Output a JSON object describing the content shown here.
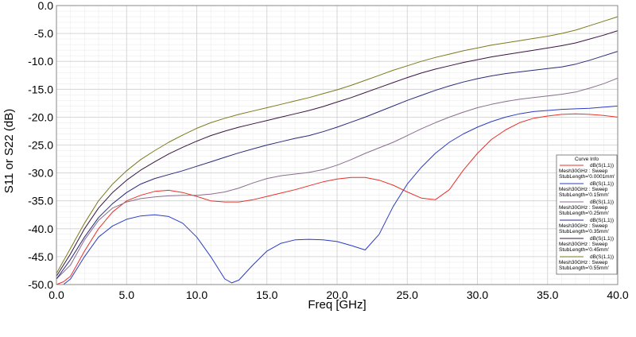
{
  "chart_data": {
    "type": "line",
    "title": "",
    "xlabel": "Freq [GHz]",
    "ylabel": "S11 or S22 (dB)",
    "xlim": [
      0,
      40
    ],
    "ylim": [
      -50,
      0
    ],
    "x_ticks": [
      "0.0",
      "5.0",
      "10.0",
      "15.0",
      "20.0",
      "25.0",
      "30.0",
      "35.0",
      "40.0"
    ],
    "y_ticks": [
      "0.0",
      "-5.0",
      "-10.0",
      "-15.0",
      "-20.0",
      "-25.0",
      "-30.0",
      "-35.0",
      "-40.0",
      "-45.0",
      "-50.0"
    ],
    "grid": true,
    "legend": {
      "title": "Curve Info",
      "placement": "bottom-right"
    },
    "series": [
      {
        "name": "dB(S(1,1))",
        "line1": "Mesh30GHz : Sweep",
        "line2": "StubLength='0.0001mm'",
        "color": "#e8312a",
        "x": [
          0,
          0.5,
          1,
          2,
          3,
          4,
          5,
          6,
          7,
          8,
          9,
          10,
          11,
          12,
          13,
          14,
          15,
          16,
          17,
          18,
          19,
          20,
          21,
          22,
          23,
          24,
          25,
          26,
          27,
          28,
          29,
          30,
          31,
          32,
          33,
          34,
          35,
          36,
          37,
          38,
          39,
          40
        ],
        "y": [
          -50,
          -49.5,
          -48.5,
          -44,
          -40,
          -37,
          -35,
          -34,
          -33.3,
          -33.1,
          -33.5,
          -34.2,
          -35,
          -35.2,
          -35.2,
          -34.8,
          -34.2,
          -33.6,
          -33,
          -32.3,
          -31.6,
          -31.1,
          -30.8,
          -30.8,
          -31.3,
          -32.2,
          -33.4,
          -34.5,
          -34.8,
          -33,
          -29.5,
          -26.5,
          -24,
          -22.3,
          -21,
          -20.2,
          -19.8,
          -19.5,
          -19.4,
          -19.5,
          -19.7,
          -20
        ]
      },
      {
        "name": "dB(S(1,1))",
        "line1": "Mesh30GHz : Sweep",
        "line2": "StubLength='0.15mm'",
        "color": "#2b3cc4",
        "x": [
          0,
          0.5,
          1,
          2,
          3,
          4,
          5,
          6,
          7,
          8,
          9,
          10,
          11,
          12,
          12.5,
          13,
          14,
          15,
          16,
          17,
          18,
          19,
          20,
          21,
          22,
          23,
          24,
          25,
          26,
          27,
          28,
          29,
          30,
          31,
          32,
          33,
          34,
          35,
          36,
          37,
          38,
          39,
          40
        ],
        "y": [
          -50,
          -50,
          -49,
          -45,
          -41.5,
          -39.5,
          -38.3,
          -37.7,
          -37.5,
          -37.8,
          -39,
          -41.5,
          -45,
          -49,
          -49.7,
          -49.2,
          -46.5,
          -44,
          -42.6,
          -42,
          -41.9,
          -42,
          -42.3,
          -43,
          -43.8,
          -41,
          -36,
          -32,
          -29,
          -26.5,
          -24.5,
          -23,
          -21.8,
          -20.8,
          -20,
          -19.4,
          -19,
          -18.8,
          -18.6,
          -18.5,
          -18.4,
          -18.2,
          -18
        ]
      },
      {
        "name": "dB(S(1,1))",
        "line1": "Mesh30GHz : Sweep",
        "line2": "StubLength='0.25mm'",
        "color": "#8a6e8e",
        "x": [
          0,
          1,
          2,
          3,
          4,
          5,
          6,
          7,
          8,
          9,
          10,
          11,
          12,
          13,
          14,
          15,
          16,
          17,
          18,
          19,
          20,
          21,
          22,
          23,
          24,
          25,
          26,
          27,
          28,
          29,
          30,
          31,
          32,
          33,
          34,
          35,
          36,
          37,
          38,
          39,
          40
        ],
        "y": [
          -49,
          -46.5,
          -42,
          -38.5,
          -36.3,
          -35.2,
          -34.6,
          -34.3,
          -34.1,
          -34,
          -34,
          -33.8,
          -33.4,
          -32.7,
          -31.8,
          -31,
          -30.5,
          -30.2,
          -29.9,
          -29.4,
          -28.6,
          -27.6,
          -26.5,
          -25.5,
          -24.5,
          -23.3,
          -22.1,
          -21,
          -20,
          -19.1,
          -18.3,
          -17.7,
          -17.2,
          -16.8,
          -16.5,
          -16.2,
          -15.9,
          -15.5,
          -14.8,
          -14,
          -13
        ]
      },
      {
        "name": "dB(S(1,1))",
        "line1": "Mesh30GHz : Sweep",
        "line2": "StubLength='0.35mm'",
        "color": "#2a2a7a",
        "x": [
          0,
          1,
          2,
          3,
          4,
          5,
          6,
          7,
          8,
          9,
          10,
          11,
          12,
          13,
          14,
          15,
          16,
          17,
          18,
          19,
          20,
          21,
          22,
          23,
          24,
          25,
          26,
          27,
          28,
          29,
          30,
          31,
          32,
          33,
          34,
          35,
          36,
          37,
          38,
          39,
          40
        ],
        "y": [
          -49,
          -45.5,
          -41.5,
          -38,
          -35.5,
          -33.5,
          -32,
          -31,
          -30.3,
          -29.6,
          -28.8,
          -28,
          -27.2,
          -26.4,
          -25.7,
          -25,
          -24.4,
          -23.8,
          -23.3,
          -22.6,
          -21.8,
          -20.9,
          -20,
          -19,
          -18,
          -17,
          -16.1,
          -15.2,
          -14.4,
          -13.7,
          -13.1,
          -12.6,
          -12.2,
          -11.9,
          -11.6,
          -11.3,
          -11,
          -10.5,
          -9.8,
          -9,
          -8.2
        ]
      },
      {
        "name": "dB(S(1,1))",
        "line1": "Mesh30GHz : Sweep",
        "line2": "StubLength='0.45mm'",
        "color": "#3a1540",
        "x": [
          0,
          1,
          2,
          3,
          4,
          5,
          6,
          7,
          8,
          9,
          10,
          11,
          12,
          13,
          14,
          15,
          16,
          17,
          18,
          19,
          20,
          21,
          22,
          23,
          24,
          25,
          26,
          27,
          28,
          29,
          30,
          31,
          32,
          33,
          34,
          35,
          36,
          37,
          38,
          39,
          40
        ],
        "y": [
          -48.5,
          -44.5,
          -40,
          -36.3,
          -33.5,
          -31.3,
          -29.5,
          -28,
          -26.6,
          -25.4,
          -24.3,
          -23.3,
          -22.5,
          -21.8,
          -21.2,
          -20.6,
          -20,
          -19.4,
          -18.8,
          -18.1,
          -17.3,
          -16.5,
          -15.6,
          -14.7,
          -13.8,
          -12.9,
          -12.1,
          -11.4,
          -10.8,
          -10.2,
          -9.7,
          -9.2,
          -8.8,
          -8.4,
          -8,
          -7.6,
          -7.2,
          -6.7,
          -6,
          -5.3,
          -4.5
        ]
      },
      {
        "name": "dB(S(1,1))",
        "line1": "Mesh30GHz : Sweep",
        "line2": "StubLength='0.55mm'",
        "color": "#7c7a1c",
        "x": [
          0,
          1,
          2,
          3,
          4,
          5,
          6,
          7,
          8,
          9,
          10,
          11,
          12,
          13,
          14,
          15,
          16,
          17,
          18,
          19,
          20,
          21,
          22,
          23,
          24,
          25,
          26,
          27,
          28,
          29,
          30,
          31,
          32,
          33,
          34,
          35,
          36,
          37,
          38,
          39,
          40
        ],
        "y": [
          -48,
          -43.5,
          -39,
          -35,
          -32,
          -29.6,
          -27.6,
          -26,
          -24.5,
          -23.2,
          -22,
          -21,
          -20.2,
          -19.5,
          -18.9,
          -18.3,
          -17.7,
          -17.1,
          -16.5,
          -15.8,
          -15.1,
          -14.3,
          -13.4,
          -12.5,
          -11.6,
          -10.8,
          -10,
          -9.3,
          -8.7,
          -8.1,
          -7.6,
          -7.1,
          -6.7,
          -6.3,
          -5.9,
          -5.5,
          -5,
          -4.4,
          -3.6,
          -2.8,
          -2
        ]
      }
    ]
  }
}
